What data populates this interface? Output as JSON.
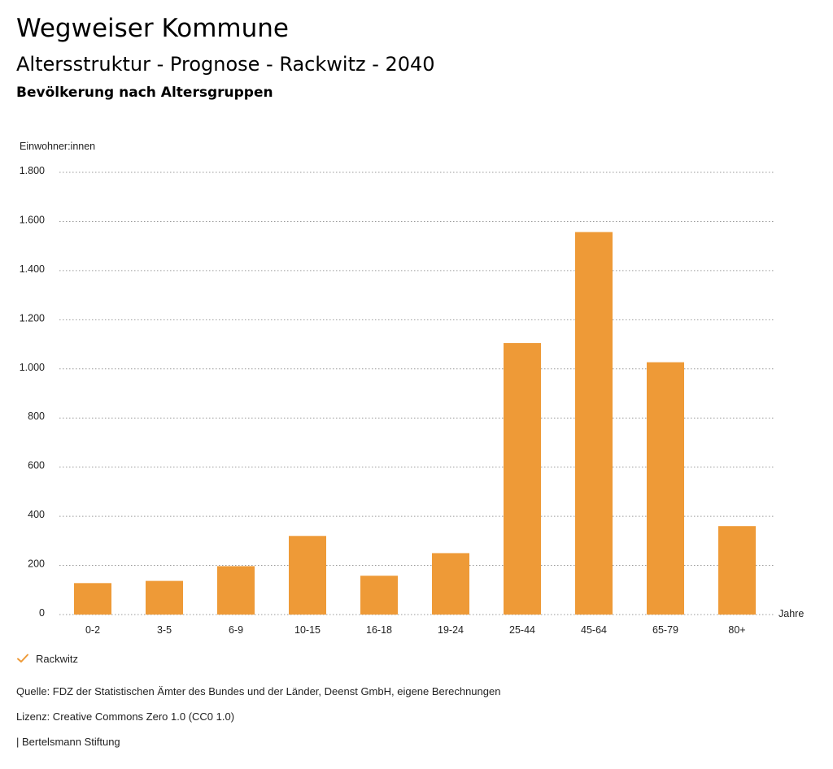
{
  "header": {
    "title": "Wegweiser Kommune",
    "subtitle": "Altersstruktur - Prognose - Rackwitz - 2040",
    "subsubtitle": "Bevölkerung nach Altersgruppen"
  },
  "chart_data": {
    "type": "bar",
    "ylabel": "Einwohner:innen",
    "xlabel": "Jahre",
    "ylim": [
      0,
      1800
    ],
    "yticks": [
      0,
      200,
      400,
      600,
      800,
      1000,
      1200,
      1400,
      1600,
      1800
    ],
    "ytick_labels": [
      "0",
      "200",
      "400",
      "600",
      "800",
      "1.000",
      "1.200",
      "1.400",
      "1.600",
      "1.800"
    ],
    "categories": [
      "0-2",
      "3-5",
      "6-9",
      "10-15",
      "16-18",
      "19-24",
      "25-44",
      "45-64",
      "65-79",
      "80+"
    ],
    "series": [
      {
        "name": "Rackwitz",
        "color": "#ee9a37",
        "values": [
          128,
          137,
          197,
          320,
          158,
          250,
          1105,
          1557,
          1027,
          360
        ]
      }
    ],
    "grid": "horizontal-dotted",
    "legend": "bottom-left"
  },
  "legend": {
    "items": [
      {
        "label": "Rackwitz",
        "icon": "checkmark-icon",
        "color": "#ee9a37"
      }
    ]
  },
  "footer": {
    "source": "Quelle: FDZ der Statistischen Ämter des Bundes und der Länder, Deenst GmbH, eigene Berechnungen",
    "license": "Lizenz: Creative Commons Zero 1.0 (CC0 1.0)",
    "publisher": "| Bertelsmann Stiftung"
  }
}
